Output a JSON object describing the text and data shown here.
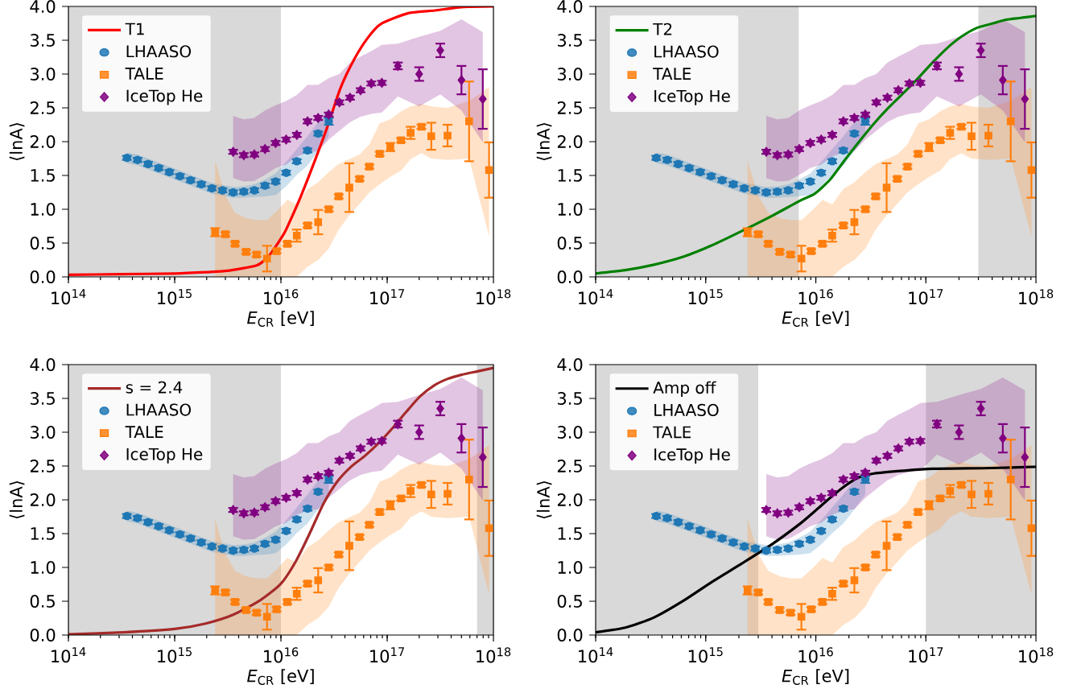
{
  "chart_data": [
    {
      "type": "scatter",
      "xlabel": "*E*$_{CR}$ [eV]",
      "ylabel": "⟨lnA⟩",
      "log": "x",
      "legend": "top left",
      "xlim": [
        100000000000000.0,
        1e+18
      ],
      "ylim": [
        0,
        4
      ],
      "xticks": [
        {
          "value": 100000000000000.0,
          "label": "10$^{14}$"
        },
        {
          "value": 1000000000000000.0,
          "label": "10$^{15}$"
        },
        {
          "value": 1e+16,
          "label": "10$^{16}$"
        },
        {
          "value": 1e+17,
          "label": "10$^{17}$"
        },
        {
          "value": 1e+18,
          "label": "10$^{18}$"
        }
      ],
      "yticks": [
        {
          "value": 0,
          "label": "0.0"
        },
        {
          "value": 0.5,
          "label": "0.5"
        },
        {
          "value": 1,
          "label": "1.0"
        },
        {
          "value": 1.5,
          "label": "1.5"
        },
        {
          "value": 2,
          "label": "2.0"
        },
        {
          "value": 2.5,
          "label": "2.5"
        },
        {
          "value": 3,
          "label": "3.0"
        },
        {
          "value": 3.5,
          "label": "3.5"
        },
        {
          "value": 4,
          "label": "4.0"
        }
      ],
      "bands": [
        {
          "axis": "x",
          "from": 100000000000000.0,
          "to": 1e+16,
          "color": "#d9d9d9"
        }
      ],
      "series": [
        {
          "name": "T1",
          "type": "line",
          "color": "#ff0000",
          "x": [
            100000000000000.0,
            316000000000000.0,
            1000000000000000.0,
            2000000000000000.0,
            3160000000000000.0,
            5900000000000000.0,
            7400000000000000.0,
            8500000000000000.0,
            1.05e+16,
            1.15e+16,
            1.51e+16,
            2.04e+16,
            2.75e+16,
            3.63e+16,
            4.9e+16,
            6.6e+16,
            8.7e+16,
            1.58e+17,
            2.82e+17,
            5e+17,
            1e+18
          ],
          "values": [
            0.03,
            0.04,
            0.05,
            0.07,
            0.09,
            0.17,
            0.28,
            0.4,
            0.62,
            0.74,
            1.16,
            1.68,
            2.23,
            2.79,
            3.22,
            3.54,
            3.74,
            3.9,
            3.94,
            3.99,
            4.0
          ]
        },
        {
          "name": "LHAASO",
          "type": "scatter",
          "marker": "circle",
          "color": "#1f77b4",
          "x": [
            355000000000000.0,
            447000000000000.0,
            562000000000000.0,
            708000000000000.0,
            891000000000000.0,
            1120000000000000.0,
            1410000000000000.0,
            1780000000000000.0,
            2240000000000000.0,
            2820000000000000.0,
            3550000000000000.0,
            4470000000000000.0,
            5620000000000000.0,
            7080000000000000.0,
            8910000000000000.0,
            1.12e+16,
            1.41e+16,
            1.78e+16,
            2.24e+16,
            2.82e+16
          ],
          "values": [
            1.76,
            1.73,
            1.67,
            1.61,
            1.55,
            1.49,
            1.43,
            1.37,
            1.31,
            1.28,
            1.25,
            1.26,
            1.28,
            1.35,
            1.41,
            1.54,
            1.71,
            1.87,
            2.12,
            2.3
          ],
          "errors": [
            0.03,
            0.03,
            0.03,
            0.03,
            0.03,
            0.03,
            0.03,
            0.03,
            0.03,
            0.03,
            0.03,
            0.03,
            0.03,
            0.03,
            0.03,
            0.03,
            0.03,
            0.03,
            0.03,
            0.05
          ],
          "upper": [
            1.84,
            1.81,
            1.75,
            1.69,
            1.63,
            1.57,
            1.51,
            1.45,
            1.39,
            1.36,
            1.33,
            1.34,
            1.37,
            1.44,
            1.53,
            1.7,
            1.89,
            2.08,
            2.29,
            2.5
          ],
          "lower": [
            1.68,
            1.65,
            1.59,
            1.53,
            1.47,
            1.41,
            1.35,
            1.29,
            1.23,
            1.2,
            1.17,
            1.17,
            1.18,
            1.19,
            1.21,
            1.34,
            1.51,
            1.65,
            1.86,
            2.08
          ]
        },
        {
          "name": "TALE",
          "type": "scatter",
          "marker": "square",
          "color": "#ff7f0e",
          "x": [
            2400000000000000.0,
            3000000000000000.0,
            3700000000000000.0,
            4700000000000000.0,
            5900000000000000.0,
            7400000000000000.0,
            9100000000000000.0,
            1.15e+16,
            1.41e+16,
            1.78e+16,
            2.24e+16,
            2.82e+16,
            3.5e+16,
            4.4e+16,
            5.5e+16,
            6.8e+16,
            8.5e+16,
            1.07e+17,
            1.35e+17,
            1.66e+17,
            2.1e+17,
            2.6e+17,
            3.7e+17,
            5.9e+17,
            9.1e+17
          ],
          "values": [
            0.66,
            0.63,
            0.49,
            0.37,
            0.33,
            0.27,
            0.38,
            0.49,
            0.61,
            0.76,
            0.81,
            1.0,
            1.19,
            1.32,
            1.45,
            1.63,
            1.82,
            1.92,
            2.02,
            2.13,
            2.22,
            2.08,
            2.09,
            2.3,
            1.58
          ],
          "errors": [
            0.06,
            0.03,
            0.03,
            0.03,
            0.03,
            0.19,
            0.03,
            0.03,
            0.09,
            0.03,
            0.18,
            0.03,
            0.03,
            0.36,
            0.03,
            0.03,
            0.03,
            0.06,
            0.03,
            0.09,
            0.03,
            0.2,
            0.16,
            0.59,
            0.41
          ],
          "upper": [
            1.72,
            1.2,
            0.95,
            0.87,
            0.84,
            0.84,
            0.97,
            1.14,
            1.07,
            1.3,
            1.4,
            1.55,
            1.67,
            1.74,
            1.81,
            1.96,
            2.27,
            2.33,
            2.45,
            2.52,
            2.56,
            2.52,
            2.5,
            2.6,
            2.81
          ],
          "lower": [
            0,
            0,
            0,
            0,
            0,
            0,
            0,
            0,
            0,
            0.15,
            0.25,
            0.42,
            0.7,
            0.91,
            1.08,
            1.25,
            1.37,
            1.48,
            1.57,
            1.74,
            1.83,
            1.75,
            1.73,
            1.75,
            0.6
          ]
        },
        {
          "name": "IceTop He",
          "type": "scatter",
          "marker": "diamond",
          "color": "#800080",
          "x": [
            3550000000000000.0,
            4470000000000000.0,
            5620000000000000.0,
            7080000000000000.0,
            8910000000000000.0,
            1.12e+16,
            1.41e+16,
            1.78e+16,
            2.24e+16,
            2.82e+16,
            3.55e+16,
            4.47e+16,
            5.62e+16,
            7.08e+16,
            8.91e+16,
            1.26e+17,
            2e+17,
            3.16e+17,
            5e+17,
            7.94e+17
          ],
          "values": [
            1.85,
            1.8,
            1.81,
            1.89,
            1.98,
            2.03,
            2.1,
            2.3,
            2.35,
            2.4,
            2.58,
            2.65,
            2.76,
            2.86,
            2.87,
            3.12,
            3.0,
            3.35,
            2.91,
            2.63
          ],
          "errors": [
            0.03,
            0.03,
            0.03,
            0.03,
            0.03,
            0.03,
            0.03,
            0.03,
            0.03,
            0.03,
            0.03,
            0.03,
            0.03,
            0.03,
            0.03,
            0.05,
            0.1,
            0.1,
            0.21,
            0.44
          ],
          "upper": [
            2.38,
            2.33,
            2.35,
            2.46,
            2.54,
            2.6,
            2.69,
            2.84,
            2.84,
            2.94,
            3.0,
            3.17,
            3.26,
            3.34,
            3.43,
            3.45,
            3.55,
            3.64,
            3.81,
            3.62
          ],
          "lower": [
            1.46,
            1.41,
            1.42,
            1.51,
            1.61,
            1.66,
            1.78,
            1.84,
            1.86,
            2.03,
            2.16,
            2.29,
            2.37,
            2.41,
            2.43,
            2.67,
            2.52,
            2.7,
            2.46,
            1.99
          ]
        }
      ]
    },
    {
      "type": "scatter",
      "xlabel": "*E*$_{CR}$ [eV]",
      "ylabel": "⟨lnA⟩",
      "log": "x",
      "legend": "top left",
      "xlim": [
        100000000000000.0,
        1e+18
      ],
      "ylim": [
        0,
        4
      ],
      "xticks": [
        {
          "value": 100000000000000.0,
          "label": "10$^{14}$"
        },
        {
          "value": 1000000000000000.0,
          "label": "10$^{15}$"
        },
        {
          "value": 1e+16,
          "label": "10$^{16}$"
        },
        {
          "value": 1e+17,
          "label": "10$^{17}$"
        },
        {
          "value": 1e+18,
          "label": "10$^{18}$"
        }
      ],
      "yticks": [
        {
          "value": 0,
          "label": "0.0"
        },
        {
          "value": 0.5,
          "label": "0.5"
        },
        {
          "value": 1,
          "label": "1.0"
        },
        {
          "value": 1.5,
          "label": "1.5"
        },
        {
          "value": 2,
          "label": "2.0"
        },
        {
          "value": 2.5,
          "label": "2.5"
        },
        {
          "value": 3,
          "label": "3.0"
        },
        {
          "value": 3.5,
          "label": "3.5"
        },
        {
          "value": 4,
          "label": "4.0"
        }
      ],
      "bands": [
        {
          "axis": "x",
          "from": 100000000000000.0,
          "to": 7000000000000000.0,
          "color": "#d9d9d9"
        },
        {
          "axis": "x",
          "from": 3e+17,
          "to": 1e+18,
          "color": "#d9d9d9"
        }
      ],
      "series": [
        {
          "name": "T2",
          "type": "line",
          "color": "#008000",
          "x": [
            100000000000000.0,
            186000000000000.0,
            339000000000000.0,
            631000000000000.0,
            1150000000000000.0,
            2140000000000000.0,
            3980000000000000.0,
            7240000000000000.0,
            9770000000000000.0,
            1.35e+16,
            1.82e+16,
            2.45e+16,
            3.39e+16,
            4.57e+16,
            6.17e+16,
            8.51e+16,
            1.15e+17,
            1.55e+17,
            2.09e+17,
            2.88e+17,
            3.89e+17,
            5.25e+17,
            7.24e+17,
            1e+18
          ],
          "values": [
            0.05,
            0.1,
            0.18,
            0.3,
            0.47,
            0.68,
            0.9,
            1.13,
            1.23,
            1.44,
            1.72,
            1.99,
            2.27,
            2.5,
            2.71,
            2.94,
            3.17,
            3.38,
            3.55,
            3.68,
            3.74,
            3.8,
            3.83,
            3.86
          ]
        },
        {
          "name": "LHAASO",
          "type": "scatter",
          "marker": "circle",
          "color": "#1f77b4",
          "x": [
            355000000000000.0,
            447000000000000.0,
            562000000000000.0,
            708000000000000.0,
            891000000000000.0,
            1120000000000000.0,
            1410000000000000.0,
            1780000000000000.0,
            2240000000000000.0,
            2820000000000000.0,
            3550000000000000.0,
            4470000000000000.0,
            5620000000000000.0,
            7080000000000000.0,
            8910000000000000.0,
            1.12e+16,
            1.41e+16,
            1.78e+16,
            2.24e+16,
            2.82e+16
          ],
          "values": [
            1.76,
            1.73,
            1.67,
            1.61,
            1.55,
            1.49,
            1.43,
            1.37,
            1.31,
            1.28,
            1.25,
            1.26,
            1.28,
            1.35,
            1.41,
            1.54,
            1.71,
            1.87,
            2.12,
            2.3
          ],
          "errors": [
            0.03,
            0.03,
            0.03,
            0.03,
            0.03,
            0.03,
            0.03,
            0.03,
            0.03,
            0.03,
            0.03,
            0.03,
            0.03,
            0.03,
            0.03,
            0.03,
            0.03,
            0.03,
            0.03,
            0.05
          ],
          "upper": [
            1.84,
            1.81,
            1.75,
            1.69,
            1.63,
            1.57,
            1.51,
            1.45,
            1.39,
            1.36,
            1.33,
            1.34,
            1.37,
            1.44,
            1.53,
            1.7,
            1.89,
            2.08,
            2.29,
            2.5
          ],
          "lower": [
            1.68,
            1.65,
            1.59,
            1.53,
            1.47,
            1.41,
            1.35,
            1.29,
            1.23,
            1.2,
            1.17,
            1.17,
            1.18,
            1.19,
            1.21,
            1.34,
            1.51,
            1.65,
            1.86,
            2.08
          ]
        },
        {
          "name": "TALE",
          "type": "scatter",
          "marker": "square",
          "color": "#ff7f0e",
          "x": [
            2400000000000000.0,
            3000000000000000.0,
            3700000000000000.0,
            4700000000000000.0,
            5900000000000000.0,
            7400000000000000.0,
            9100000000000000.0,
            1.15e+16,
            1.41e+16,
            1.78e+16,
            2.24e+16,
            2.82e+16,
            3.5e+16,
            4.4e+16,
            5.5e+16,
            6.8e+16,
            8.5e+16,
            1.07e+17,
            1.35e+17,
            1.66e+17,
            2.1e+17,
            2.6e+17,
            3.7e+17,
            5.9e+17,
            9.1e+17
          ],
          "values": [
            0.66,
            0.63,
            0.49,
            0.37,
            0.33,
            0.27,
            0.38,
            0.49,
            0.61,
            0.76,
            0.81,
            1.0,
            1.19,
            1.32,
            1.45,
            1.63,
            1.82,
            1.92,
            2.02,
            2.13,
            2.22,
            2.08,
            2.09,
            2.3,
            1.58
          ],
          "errors": [
            0.06,
            0.03,
            0.03,
            0.03,
            0.03,
            0.19,
            0.03,
            0.03,
            0.09,
            0.03,
            0.18,
            0.03,
            0.03,
            0.36,
            0.03,
            0.03,
            0.03,
            0.06,
            0.03,
            0.09,
            0.03,
            0.2,
            0.16,
            0.59,
            0.41
          ],
          "upper": [
            1.72,
            1.2,
            0.95,
            0.87,
            0.84,
            0.84,
            0.97,
            1.14,
            1.07,
            1.3,
            1.4,
            1.55,
            1.67,
            1.74,
            1.81,
            1.96,
            2.27,
            2.33,
            2.45,
            2.52,
            2.56,
            2.52,
            2.5,
            2.6,
            2.81
          ],
          "lower": [
            0,
            0,
            0,
            0,
            0,
            0,
            0,
            0,
            0,
            0.15,
            0.25,
            0.42,
            0.7,
            0.91,
            1.08,
            1.25,
            1.37,
            1.48,
            1.57,
            1.74,
            1.83,
            1.75,
            1.73,
            1.75,
            0.6
          ]
        },
        {
          "name": "IceTop He",
          "type": "scatter",
          "marker": "diamond",
          "color": "#800080",
          "x": [
            3550000000000000.0,
            4470000000000000.0,
            5620000000000000.0,
            7080000000000000.0,
            8910000000000000.0,
            1.12e+16,
            1.41e+16,
            1.78e+16,
            2.24e+16,
            2.82e+16,
            3.55e+16,
            4.47e+16,
            5.62e+16,
            7.08e+16,
            8.91e+16,
            1.26e+17,
            2e+17,
            3.16e+17,
            5e+17,
            7.94e+17
          ],
          "values": [
            1.85,
            1.8,
            1.81,
            1.89,
            1.98,
            2.03,
            2.1,
            2.3,
            2.35,
            2.4,
            2.58,
            2.65,
            2.76,
            2.86,
            2.87,
            3.12,
            3.0,
            3.35,
            2.91,
            2.63
          ],
          "errors": [
            0.03,
            0.03,
            0.03,
            0.03,
            0.03,
            0.03,
            0.03,
            0.03,
            0.03,
            0.03,
            0.03,
            0.03,
            0.03,
            0.03,
            0.03,
            0.05,
            0.1,
            0.1,
            0.21,
            0.44
          ],
          "upper": [
            2.38,
            2.33,
            2.35,
            2.46,
            2.54,
            2.6,
            2.69,
            2.84,
            2.84,
            2.94,
            3.0,
            3.17,
            3.26,
            3.34,
            3.43,
            3.45,
            3.55,
            3.64,
            3.81,
            3.62
          ],
          "lower": [
            1.46,
            1.41,
            1.42,
            1.51,
            1.61,
            1.66,
            1.78,
            1.84,
            1.86,
            2.03,
            2.16,
            2.29,
            2.37,
            2.41,
            2.43,
            2.67,
            2.52,
            2.7,
            2.46,
            1.99
          ]
        }
      ]
    },
    {
      "type": "scatter",
      "xlabel": "*E*$_{CR}$ [eV]",
      "ylabel": "⟨lnA⟩",
      "log": "x",
      "legend": "top left",
      "xlim": [
        100000000000000.0,
        1e+18
      ],
      "ylim": [
        0,
        4
      ],
      "xticks": [
        {
          "value": 100000000000000.0,
          "label": "10$^{14}$"
        },
        {
          "value": 1000000000000000.0,
          "label": "10$^{15}$"
        },
        {
          "value": 1e+16,
          "label": "10$^{16}$"
        },
        {
          "value": 1e+17,
          "label": "10$^{17}$"
        },
        {
          "value": 1e+18,
          "label": "10$^{18}$"
        }
      ],
      "yticks": [
        {
          "value": 0,
          "label": "0.0"
        },
        {
          "value": 0.5,
          "label": "0.5"
        },
        {
          "value": 1,
          "label": "1.0"
        },
        {
          "value": 1.5,
          "label": "1.5"
        },
        {
          "value": 2,
          "label": "2.0"
        },
        {
          "value": 2.5,
          "label": "2.5"
        },
        {
          "value": 3,
          "label": "3.0"
        },
        {
          "value": 3.5,
          "label": "3.5"
        },
        {
          "value": 4,
          "label": "4.0"
        }
      ],
      "bands": [
        {
          "axis": "x",
          "from": 100000000000000.0,
          "to": 1e+16,
          "color": "#d9d9d9"
        },
        {
          "axis": "x",
          "from": 7e+17,
          "to": 1e+18,
          "color": "#d9d9d9"
        }
      ],
      "series": [
        {
          "name": "s = 2.4",
          "type": "line",
          "color": "#a52a2a",
          "x": [
            100000000000000.0,
            331000000000000.0,
            1000000000000000.0,
            1950000000000000.0,
            3550000000000000.0,
            6460000000000000.0,
            1e+16,
            1.38e+16,
            1.86e+16,
            2.51e+16,
            3.39e+16,
            4.57e+16,
            6.17e+16,
            8.32e+16,
            1.12e+17,
            1.51e+17,
            2.04e+17,
            2.75e+17,
            3.72e+17,
            5.01e+17,
            7.08e+17,
            1e+18
          ],
          "values": [
            0.01,
            0.04,
            0.09,
            0.17,
            0.3,
            0.52,
            0.76,
            1.09,
            1.5,
            1.94,
            2.27,
            2.49,
            2.65,
            2.84,
            3.06,
            3.3,
            3.53,
            3.69,
            3.79,
            3.85,
            3.9,
            3.95
          ]
        },
        {
          "name": "LHAASO",
          "type": "scatter",
          "marker": "circle",
          "color": "#1f77b4",
          "x": [
            355000000000000.0,
            447000000000000.0,
            562000000000000.0,
            708000000000000.0,
            891000000000000.0,
            1120000000000000.0,
            1410000000000000.0,
            1780000000000000.0,
            2240000000000000.0,
            2820000000000000.0,
            3550000000000000.0,
            4470000000000000.0,
            5620000000000000.0,
            7080000000000000.0,
            8910000000000000.0,
            1.12e+16,
            1.41e+16,
            1.78e+16,
            2.24e+16,
            2.82e+16
          ],
          "values": [
            1.76,
            1.73,
            1.67,
            1.61,
            1.55,
            1.49,
            1.43,
            1.37,
            1.31,
            1.28,
            1.25,
            1.26,
            1.28,
            1.35,
            1.41,
            1.54,
            1.71,
            1.87,
            2.12,
            2.3
          ],
          "errors": [
            0.03,
            0.03,
            0.03,
            0.03,
            0.03,
            0.03,
            0.03,
            0.03,
            0.03,
            0.03,
            0.03,
            0.03,
            0.03,
            0.03,
            0.03,
            0.03,
            0.03,
            0.03,
            0.03,
            0.05
          ],
          "upper": [
            1.84,
            1.81,
            1.75,
            1.69,
            1.63,
            1.57,
            1.51,
            1.45,
            1.39,
            1.36,
            1.33,
            1.34,
            1.37,
            1.44,
            1.53,
            1.7,
            1.89,
            2.08,
            2.29,
            2.5
          ],
          "lower": [
            1.68,
            1.65,
            1.59,
            1.53,
            1.47,
            1.41,
            1.35,
            1.29,
            1.23,
            1.2,
            1.17,
            1.17,
            1.18,
            1.19,
            1.21,
            1.34,
            1.51,
            1.65,
            1.86,
            2.08
          ]
        },
        {
          "name": "TALE",
          "type": "scatter",
          "marker": "square",
          "color": "#ff7f0e",
          "x": [
            2400000000000000.0,
            3000000000000000.0,
            3700000000000000.0,
            4700000000000000.0,
            5900000000000000.0,
            7400000000000000.0,
            9100000000000000.0,
            1.15e+16,
            1.41e+16,
            1.78e+16,
            2.24e+16,
            2.82e+16,
            3.5e+16,
            4.4e+16,
            5.5e+16,
            6.8e+16,
            8.5e+16,
            1.07e+17,
            1.35e+17,
            1.66e+17,
            2.1e+17,
            2.6e+17,
            3.7e+17,
            5.9e+17,
            9.1e+17
          ],
          "values": [
            0.66,
            0.63,
            0.49,
            0.37,
            0.33,
            0.27,
            0.38,
            0.49,
            0.61,
            0.76,
            0.81,
            1.0,
            1.19,
            1.32,
            1.45,
            1.63,
            1.82,
            1.92,
            2.02,
            2.13,
            2.22,
            2.08,
            2.09,
            2.3,
            1.58
          ],
          "errors": [
            0.06,
            0.03,
            0.03,
            0.03,
            0.03,
            0.19,
            0.03,
            0.03,
            0.09,
            0.03,
            0.18,
            0.03,
            0.03,
            0.36,
            0.03,
            0.03,
            0.03,
            0.06,
            0.03,
            0.09,
            0.03,
            0.2,
            0.16,
            0.59,
            0.41
          ],
          "upper": [
            1.72,
            1.2,
            0.95,
            0.87,
            0.84,
            0.84,
            0.97,
            1.14,
            1.07,
            1.3,
            1.4,
            1.55,
            1.67,
            1.74,
            1.81,
            1.96,
            2.27,
            2.33,
            2.45,
            2.52,
            2.56,
            2.52,
            2.5,
            2.6,
            2.81
          ],
          "lower": [
            0,
            0,
            0,
            0,
            0,
            0,
            0,
            0,
            0,
            0.15,
            0.25,
            0.42,
            0.7,
            0.91,
            1.08,
            1.25,
            1.37,
            1.48,
            1.57,
            1.74,
            1.83,
            1.75,
            1.73,
            1.75,
            0.6
          ]
        },
        {
          "name": "IceTop He",
          "type": "scatter",
          "marker": "diamond",
          "color": "#800080",
          "x": [
            3550000000000000.0,
            4470000000000000.0,
            5620000000000000.0,
            7080000000000000.0,
            8910000000000000.0,
            1.12e+16,
            1.41e+16,
            1.78e+16,
            2.24e+16,
            2.82e+16,
            3.55e+16,
            4.47e+16,
            5.62e+16,
            7.08e+16,
            8.91e+16,
            1.26e+17,
            2e+17,
            3.16e+17,
            5e+17,
            7.94e+17
          ],
          "values": [
            1.85,
            1.8,
            1.81,
            1.89,
            1.98,
            2.03,
            2.1,
            2.3,
            2.35,
            2.4,
            2.58,
            2.65,
            2.76,
            2.86,
            2.87,
            3.12,
            3.0,
            3.35,
            2.91,
            2.63
          ],
          "errors": [
            0.03,
            0.03,
            0.03,
            0.03,
            0.03,
            0.03,
            0.03,
            0.03,
            0.03,
            0.03,
            0.03,
            0.03,
            0.03,
            0.03,
            0.03,
            0.05,
            0.1,
            0.1,
            0.21,
            0.44
          ],
          "upper": [
            2.38,
            2.33,
            2.35,
            2.46,
            2.54,
            2.6,
            2.69,
            2.84,
            2.84,
            2.94,
            3.0,
            3.17,
            3.26,
            3.34,
            3.43,
            3.45,
            3.55,
            3.64,
            3.81,
            3.62
          ],
          "lower": [
            1.46,
            1.41,
            1.42,
            1.51,
            1.61,
            1.66,
            1.78,
            1.84,
            1.86,
            2.03,
            2.16,
            2.29,
            2.37,
            2.41,
            2.43,
            2.67,
            2.52,
            2.7,
            2.46,
            1.99
          ]
        }
      ]
    },
    {
      "type": "scatter",
      "xlabel": "*E*$_{CR}$ [eV]",
      "ylabel": "⟨lnA⟩",
      "log": "x",
      "legend": "top left",
      "xlim": [
        100000000000000.0,
        1e+18
      ],
      "ylim": [
        0,
        4
      ],
      "xticks": [
        {
          "value": 100000000000000.0,
          "label": "10$^{14}$"
        },
        {
          "value": 1000000000000000.0,
          "label": "10$^{15}$"
        },
        {
          "value": 1e+16,
          "label": "10$^{16}$"
        },
        {
          "value": 1e+17,
          "label": "10$^{17}$"
        },
        {
          "value": 1e+18,
          "label": "10$^{18}$"
        }
      ],
      "yticks": [
        {
          "value": 0,
          "label": "0.0"
        },
        {
          "value": 0.5,
          "label": "0.5"
        },
        {
          "value": 1,
          "label": "1.0"
        },
        {
          "value": 1.5,
          "label": "1.5"
        },
        {
          "value": 2,
          "label": "2.0"
        },
        {
          "value": 2.5,
          "label": "2.5"
        },
        {
          "value": 3,
          "label": "3.0"
        },
        {
          "value": 3.5,
          "label": "3.5"
        },
        {
          "value": 4,
          "label": "4.0"
        }
      ],
      "bands": [
        {
          "axis": "x",
          "from": 100000000000000.0,
          "to": 3000000000000000.0,
          "color": "#d9d9d9"
        },
        {
          "axis": "x",
          "from": 1e+17,
          "to": 1e+18,
          "color": "#d9d9d9"
        }
      ],
      "series": [
        {
          "name": "Amp off",
          "type": "line",
          "color": "#000000",
          "x": [
            100000000000000.0,
            186000000000000.0,
            339000000000000.0,
            631000000000000.0,
            1150000000000000.0,
            2140000000000000.0,
            3980000000000000.0,
            7240000000000000.0,
            9770000000000000.0,
            1.35e+16,
            1.82e+16,
            2.45e+16,
            3.39e+16,
            6.17e+16,
            1.15e+17,
            3.89e+17,
            1e+18
          ],
          "values": [
            0.04,
            0.11,
            0.26,
            0.51,
            0.79,
            1.06,
            1.34,
            1.65,
            1.83,
            2.03,
            2.2,
            2.33,
            2.39,
            2.43,
            2.46,
            2.47,
            2.49
          ]
        },
        {
          "name": "LHAASO",
          "type": "scatter",
          "marker": "circle",
          "color": "#1f77b4",
          "x": [
            355000000000000.0,
            447000000000000.0,
            562000000000000.0,
            708000000000000.0,
            891000000000000.0,
            1120000000000000.0,
            1410000000000000.0,
            1780000000000000.0,
            2240000000000000.0,
            2820000000000000.0,
            3550000000000000.0,
            4470000000000000.0,
            5620000000000000.0,
            7080000000000000.0,
            8910000000000000.0,
            1.12e+16,
            1.41e+16,
            1.78e+16,
            2.24e+16,
            2.82e+16
          ],
          "values": [
            1.76,
            1.73,
            1.67,
            1.61,
            1.55,
            1.49,
            1.43,
            1.37,
            1.31,
            1.28,
            1.25,
            1.26,
            1.28,
            1.35,
            1.41,
            1.54,
            1.71,
            1.87,
            2.12,
            2.3
          ],
          "errors": [
            0.03,
            0.03,
            0.03,
            0.03,
            0.03,
            0.03,
            0.03,
            0.03,
            0.03,
            0.03,
            0.03,
            0.03,
            0.03,
            0.03,
            0.03,
            0.03,
            0.03,
            0.03,
            0.03,
            0.05
          ],
          "upper": [
            1.84,
            1.81,
            1.75,
            1.69,
            1.63,
            1.57,
            1.51,
            1.45,
            1.39,
            1.36,
            1.33,
            1.34,
            1.37,
            1.44,
            1.53,
            1.7,
            1.89,
            2.08,
            2.29,
            2.5
          ],
          "lower": [
            1.68,
            1.65,
            1.59,
            1.53,
            1.47,
            1.41,
            1.35,
            1.29,
            1.23,
            1.2,
            1.17,
            1.17,
            1.18,
            1.19,
            1.21,
            1.34,
            1.51,
            1.65,
            1.86,
            2.08
          ]
        },
        {
          "name": "TALE",
          "type": "scatter",
          "marker": "square",
          "color": "#ff7f0e",
          "x": [
            2400000000000000.0,
            3000000000000000.0,
            3700000000000000.0,
            4700000000000000.0,
            5900000000000000.0,
            7400000000000000.0,
            9100000000000000.0,
            1.15e+16,
            1.41e+16,
            1.78e+16,
            2.24e+16,
            2.82e+16,
            3.5e+16,
            4.4e+16,
            5.5e+16,
            6.8e+16,
            8.5e+16,
            1.07e+17,
            1.35e+17,
            1.66e+17,
            2.1e+17,
            2.6e+17,
            3.7e+17,
            5.9e+17,
            9.1e+17
          ],
          "values": [
            0.66,
            0.63,
            0.49,
            0.37,
            0.33,
            0.27,
            0.38,
            0.49,
            0.61,
            0.76,
            0.81,
            1.0,
            1.19,
            1.32,
            1.45,
            1.63,
            1.82,
            1.92,
            2.02,
            2.13,
            2.22,
            2.08,
            2.09,
            2.3,
            1.58
          ],
          "errors": [
            0.06,
            0.03,
            0.03,
            0.03,
            0.03,
            0.19,
            0.03,
            0.03,
            0.09,
            0.03,
            0.18,
            0.03,
            0.03,
            0.36,
            0.03,
            0.03,
            0.03,
            0.06,
            0.03,
            0.09,
            0.03,
            0.2,
            0.16,
            0.59,
            0.41
          ],
          "upper": [
            1.72,
            1.2,
            0.95,
            0.87,
            0.84,
            0.84,
            0.97,
            1.14,
            1.07,
            1.3,
            1.4,
            1.55,
            1.67,
            1.74,
            1.81,
            1.96,
            2.27,
            2.33,
            2.45,
            2.52,
            2.56,
            2.52,
            2.5,
            2.6,
            2.81
          ],
          "lower": [
            0,
            0,
            0,
            0,
            0,
            0,
            0,
            0,
            0,
            0.15,
            0.25,
            0.42,
            0.7,
            0.91,
            1.08,
            1.25,
            1.37,
            1.48,
            1.57,
            1.74,
            1.83,
            1.75,
            1.73,
            1.75,
            0.6
          ]
        },
        {
          "name": "IceTop He",
          "type": "scatter",
          "marker": "diamond",
          "color": "#800080",
          "x": [
            3550000000000000.0,
            4470000000000000.0,
            5620000000000000.0,
            7080000000000000.0,
            8910000000000000.0,
            1.12e+16,
            1.41e+16,
            1.78e+16,
            2.24e+16,
            2.82e+16,
            3.55e+16,
            4.47e+16,
            5.62e+16,
            7.08e+16,
            8.91e+16,
            1.26e+17,
            2e+17,
            3.16e+17,
            5e+17,
            7.94e+17
          ],
          "values": [
            1.85,
            1.8,
            1.81,
            1.89,
            1.98,
            2.03,
            2.1,
            2.3,
            2.35,
            2.4,
            2.58,
            2.65,
            2.76,
            2.86,
            2.87,
            3.12,
            3.0,
            3.35,
            2.91,
            2.63
          ],
          "errors": [
            0.03,
            0.03,
            0.03,
            0.03,
            0.03,
            0.03,
            0.03,
            0.03,
            0.03,
            0.03,
            0.03,
            0.03,
            0.03,
            0.03,
            0.03,
            0.05,
            0.1,
            0.1,
            0.21,
            0.44
          ],
          "upper": [
            2.38,
            2.33,
            2.35,
            2.46,
            2.54,
            2.6,
            2.69,
            2.84,
            2.84,
            2.94,
            3.0,
            3.17,
            3.26,
            3.34,
            3.43,
            3.45,
            3.55,
            3.64,
            3.81,
            3.62
          ],
          "lower": [
            1.46,
            1.41,
            1.42,
            1.51,
            1.61,
            1.66,
            1.78,
            1.84,
            1.86,
            2.03,
            2.16,
            2.29,
            2.37,
            2.41,
            2.43,
            2.67,
            2.52,
            2.7,
            2.46,
            1.99
          ]
        }
      ]
    }
  ]
}
